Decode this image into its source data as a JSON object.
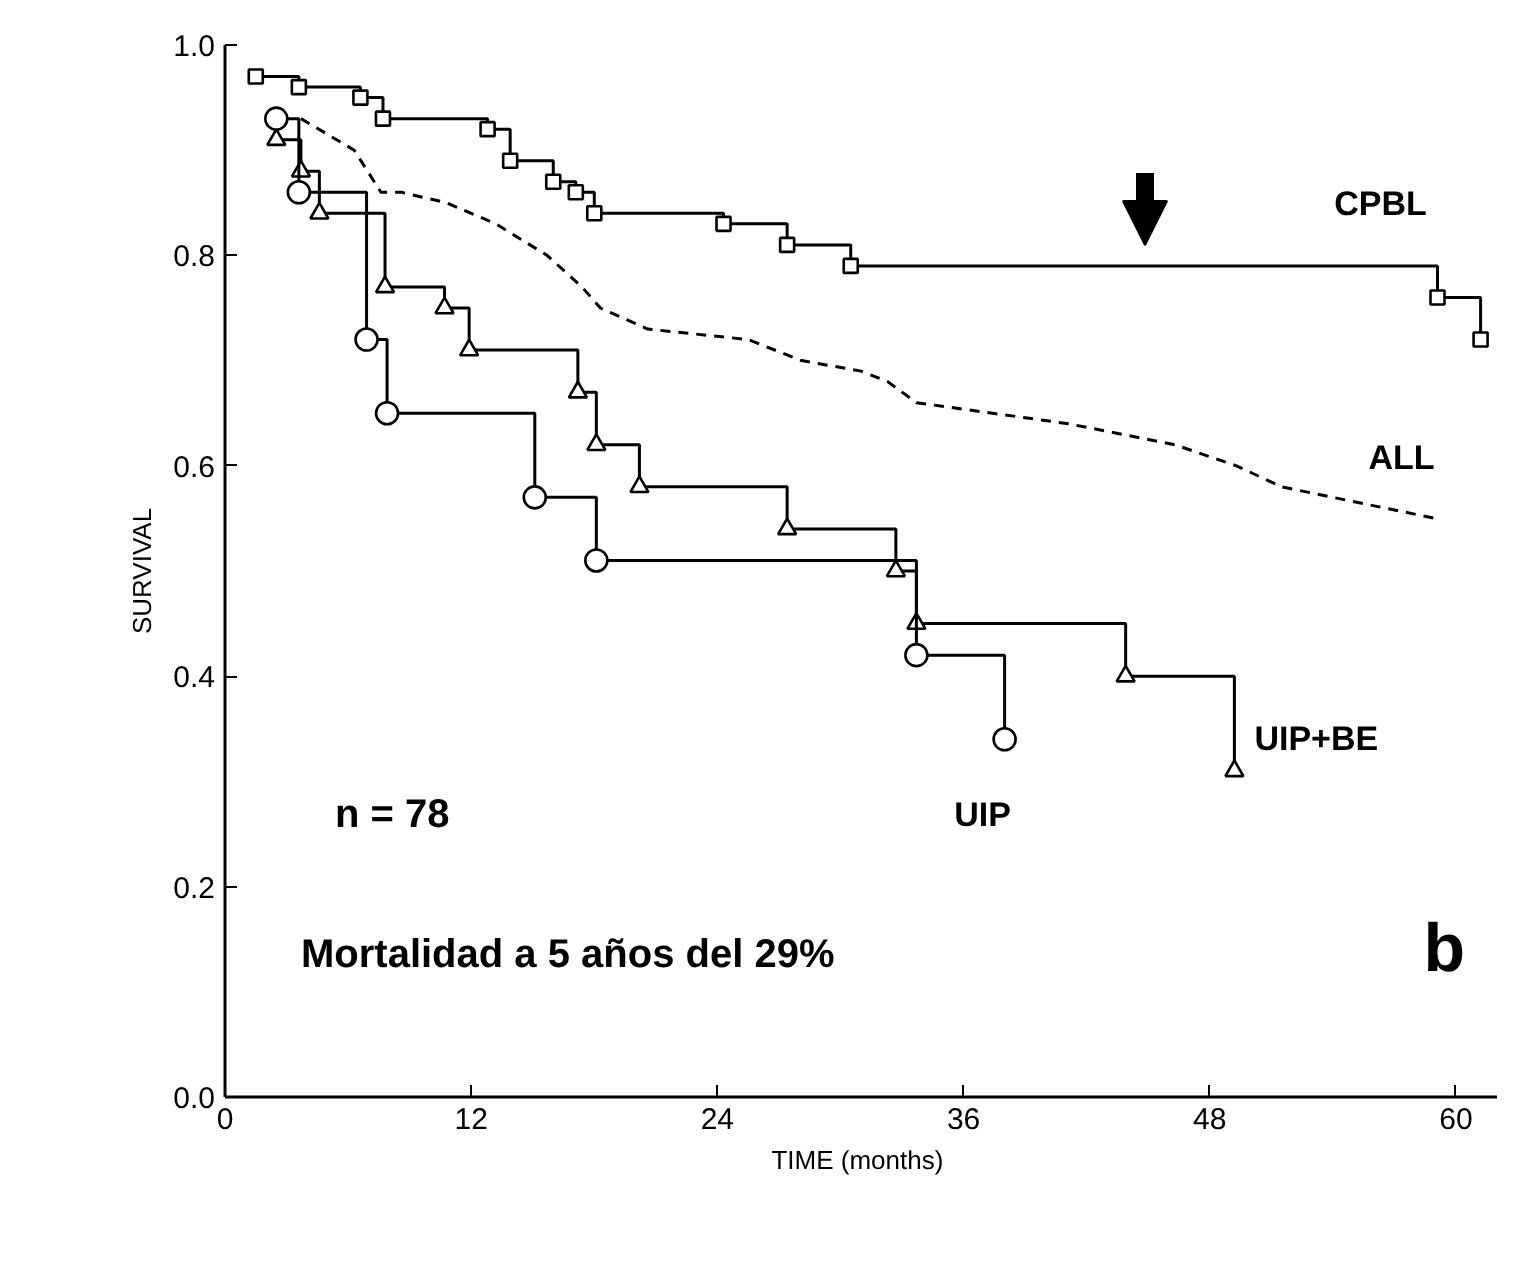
{
  "chart_data": {
    "type": "step",
    "xlabel": "TIME  (months)",
    "ylabel": "SURVIVAL",
    "xlim": [
      0,
      62
    ],
    "ylim": [
      0,
      1.0
    ],
    "xticks": [
      0,
      12,
      24,
      36,
      48,
      60
    ],
    "yticks": [
      {
        "value": 0,
        "label": "0.0"
      },
      {
        "value": 0.2,
        "label": "0.2"
      },
      {
        "value": 0.4,
        "label": "0.4"
      },
      {
        "value": 0.6,
        "label": "0.6"
      },
      {
        "value": 0.8,
        "label": "0.8"
      },
      {
        "value": 1.0,
        "label": "1.0"
      }
    ],
    "grid": false,
    "series": [
      {
        "name": "CPBL",
        "color": "#000000",
        "marker": "square",
        "line_style": "solid",
        "x": [
          1.5,
          3.6,
          6.6,
          7.7,
          12.8,
          13.9,
          16.0,
          17.1,
          18.0,
          24.3,
          27.4,
          30.5,
          59.1,
          61.2
        ],
        "values": [
          0.97,
          0.96,
          0.95,
          0.93,
          0.92,
          0.89,
          0.87,
          0.86,
          0.84,
          0.83,
          0.81,
          0.79,
          0.76,
          0.72
        ]
      },
      {
        "name": "ALL",
        "type": "line",
        "color": "#000000",
        "marker": "none",
        "line_style": "dashed",
        "x": [
          3.7,
          6.3,
          7.6,
          8.6,
          10.8,
          13.2,
          15.7,
          17.4,
          18.3,
          20.6,
          25.5,
          28.1,
          31.0,
          32.3,
          33.7,
          41.1,
          46.3,
          49.3,
          51.5,
          59.0
        ],
        "values": [
          0.93,
          0.9,
          0.86,
          0.86,
          0.85,
          0.83,
          0.8,
          0.77,
          0.75,
          0.73,
          0.72,
          0.7,
          0.69,
          0.68,
          0.66,
          0.64,
          0.62,
          0.6,
          0.58,
          0.55
        ]
      },
      {
        "name": "UIP+BE",
        "color": "#000000",
        "marker": "triangle",
        "line_style": "solid",
        "x": [
          2.5,
          3.7,
          4.6,
          7.8,
          10.7,
          11.9,
          17.2,
          18.1,
          20.2,
          27.4,
          32.7,
          33.7,
          43.9,
          49.2
        ],
        "values": [
          0.91,
          0.88,
          0.84,
          0.77,
          0.75,
          0.71,
          0.67,
          0.62,
          0.58,
          0.54,
          0.5,
          0.45,
          0.4,
          0.31
        ]
      },
      {
        "name": "UIP",
        "color": "#000000",
        "marker": "circle",
        "line_style": "solid",
        "x": [
          2.5,
          3.6,
          6.9,
          7.9,
          15.1,
          18.1,
          33.7,
          38.0
        ],
        "values": [
          0.93,
          0.86,
          0.72,
          0.65,
          0.57,
          0.51,
          0.42,
          0.34
        ]
      }
    ],
    "annotations": [
      "n = 78",
      "Mortalidad a 5 años del 29%",
      "b"
    ]
  }
}
